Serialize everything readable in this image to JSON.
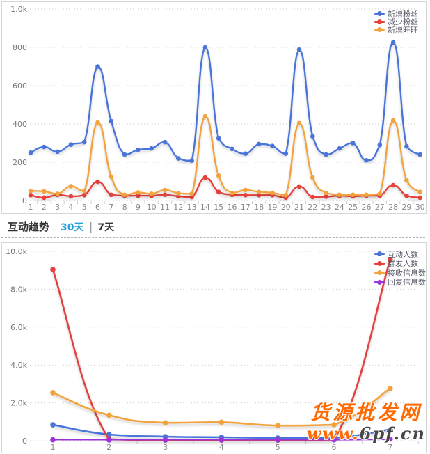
{
  "section": {
    "title": "互动趋势",
    "tab_30": "30天",
    "separator": "|",
    "tab_7": "7天",
    "active_tab_color": "#28a2de"
  },
  "watermark": {
    "line1": "货源批发网",
    "line2_orange": "www.",
    "line2_dark": "6pf.cn",
    "color": "#ff6a00"
  },
  "chart_data": [
    {
      "id": "fans_trend",
      "type": "line",
      "title": "",
      "xlabel": "",
      "ylabel": "",
      "x": [
        1,
        2,
        3,
        4,
        5,
        6,
        7,
        8,
        9,
        10,
        11,
        12,
        13,
        14,
        15,
        16,
        17,
        18,
        19,
        20,
        21,
        22,
        23,
        24,
        25,
        26,
        27,
        28,
        29,
        30
      ],
      "ylim": [
        0,
        1000
      ],
      "yticks": [
        "0",
        "200",
        "400",
        "600",
        "800",
        "1.0k"
      ],
      "grid": "dotted-horizontal",
      "legend_position": "top-right",
      "series": [
        {
          "name": "新增粉丝",
          "color": "#4a74da",
          "values": [
            250,
            280,
            255,
            292,
            305,
            700,
            415,
            240,
            265,
            272,
            305,
            220,
            208,
            800,
            325,
            270,
            245,
            295,
            285,
            245,
            788,
            335,
            240,
            272,
            300,
            210,
            290,
            826,
            283,
            240
          ]
        },
        {
          "name": "减少粉丝",
          "color": "#e5413d",
          "values": [
            28,
            15,
            30,
            22,
            28,
            98,
            30,
            25,
            25,
            25,
            30,
            22,
            18,
            120,
            45,
            30,
            28,
            28,
            28,
            15,
            73,
            18,
            20,
            25,
            22,
            25,
            25,
            80,
            25,
            15
          ]
        },
        {
          "name": "新增旺旺",
          "color": "#f2a33c",
          "values": [
            50,
            48,
            35,
            75,
            50,
            408,
            125,
            30,
            42,
            35,
            55,
            38,
            35,
            440,
            130,
            40,
            55,
            45,
            40,
            28,
            404,
            120,
            40,
            30,
            30,
            30,
            35,
            418,
            105,
            45
          ]
        }
      ]
    },
    {
      "id": "interaction_trend",
      "type": "line",
      "title": "互动趋势",
      "xlabel": "",
      "ylabel": "",
      "x": [
        1,
        2,
        3,
        4,
        5,
        6,
        7
      ],
      "ylim": [
        0,
        10000
      ],
      "yticks": [
        "0",
        "2.0k",
        "4.0k",
        "6.0k",
        "8.0k",
        "10.0k"
      ],
      "grid": "dotted-horizontal",
      "legend_position": "top-right",
      "series": [
        {
          "name": "互动人数",
          "color": "#4a74da",
          "values": [
            845,
            330,
            220,
            185,
            150,
            150,
            600
          ]
        },
        {
          "name": "群发人数",
          "color": "#e5413d",
          "values": [
            9040,
            80,
            30,
            30,
            30,
            60,
            9560
          ]
        },
        {
          "name": "接收信息数",
          "color": "#f2a33c",
          "values": [
            2540,
            1350,
            950,
            980,
            800,
            850,
            2760
          ]
        },
        {
          "name": "回复信息数",
          "color": "#9b35d9",
          "values": [
            50,
            40,
            40,
            40,
            40,
            50,
            90
          ]
        }
      ]
    }
  ]
}
